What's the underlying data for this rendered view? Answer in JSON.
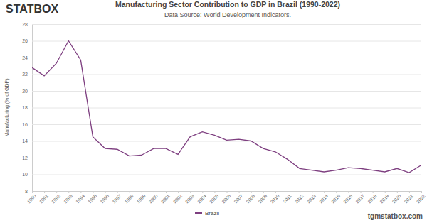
{
  "chart_data": {
    "type": "line",
    "title": "Manufacturing Sector Contribution to GDP in Brazil (1990-2022)",
    "subtitle": "Data Source: World Development Indicators.",
    "y_label": "Manufacturing (% of GDP)",
    "annotations": [
      "STATBOX",
      "tgmstatbox.com"
    ],
    "categories": [
      "1990",
      "1991",
      "1992",
      "1993",
      "1994",
      "1995",
      "1996",
      "1997",
      "1998",
      "1999",
      "2000",
      "2001",
      "2002",
      "2003",
      "2004",
      "2005",
      "2006",
      "2007",
      "2008",
      "2009",
      "2010",
      "2011",
      "2012",
      "2013",
      "2014",
      "2015",
      "2016",
      "2017",
      "2018",
      "2019",
      "2020",
      "2021",
      "2022"
    ],
    "series": [
      {
        "name": "Brazil",
        "color": "#7e3f80",
        "values": [
          22.8,
          21.8,
          23.3,
          26.0,
          23.7,
          14.5,
          13.1,
          13.0,
          12.2,
          12.3,
          13.1,
          13.1,
          12.4,
          14.5,
          15.1,
          14.7,
          14.1,
          14.2,
          14.0,
          13.1,
          12.7,
          11.8,
          10.7,
          10.5,
          10.3,
          10.5,
          10.8,
          10.7,
          10.5,
          10.3,
          10.7,
          10.2,
          11.1
        ]
      }
    ],
    "ylim": [
      8,
      28
    ],
    "yticks": [
      8,
      10,
      12,
      14,
      16,
      18,
      20,
      22,
      24,
      26,
      28
    ],
    "grid": true,
    "legend": "bottom"
  }
}
